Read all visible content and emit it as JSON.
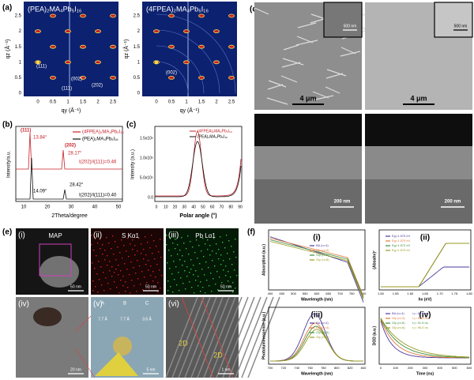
{
  "panel_a": {
    "label": "(a)",
    "titles": [
      "(PEA)₂MA₄Pb₅I₁₆",
      "(4FPEA)₂MA₄Pb₅I₁₆"
    ],
    "y_label": "qz (Å⁻¹)",
    "x_label": "qy (Å⁻¹)",
    "yticks": [
      "0",
      "0.5",
      "1",
      "1.5",
      "2",
      "2.5"
    ],
    "xticks": [
      "0",
      "0.5",
      "1",
      "1.5",
      "2",
      "2.5"
    ],
    "annotations_left": [
      "(111)",
      "(002)",
      "(111)",
      "(202)"
    ],
    "annotations_right": [
      "(002)"
    ]
  },
  "panel_b": {
    "label": "(b)",
    "legend": [
      "(4FPEA)₂MA₄Pb₅I₁₆",
      "(PEA)₂MA₄Pb₅I₁₆"
    ],
    "annotations": [
      "(111)",
      "13.84°",
      "(202)",
      "28.17°",
      "I(202)/I(111)=0.46",
      "14.09°",
      "28.42°",
      "I(202)/I(111)=0.40"
    ],
    "xticks": [
      "10",
      "20",
      "30",
      "40",
      "50"
    ],
    "x_label": "2Theta/degree",
    "y_label": "Intensity/a.u."
  },
  "panel_c": {
    "label": "(c)",
    "legend": [
      "(4FPEA)₂MA₄Pb₅I₁₆",
      "(PEA)₂MA₄Pb₅I₁₆"
    ],
    "yticks": [
      "0.0",
      "5.0x10⁵",
      "1.0x10⁶",
      "1.5x10⁶"
    ],
    "xticks": [
      "0",
      "10",
      "20",
      "30",
      "40",
      "50",
      "60",
      "70",
      "80",
      "90"
    ],
    "x_label": "Polar angle (°)",
    "y_label": "Intensity (a.u.)"
  },
  "panel_d": {
    "label": "(d)",
    "scale_top": [
      "4 μm",
      "4 μm"
    ],
    "inset_scale": [
      "500 nm",
      "500 nm"
    ],
    "scale_bottom": [
      "200 nm",
      "200 nm"
    ]
  },
  "panel_e": {
    "label": "(e)",
    "subpanels": [
      {
        "label": "(i)",
        "title": "MAP",
        "scale": "50 nm"
      },
      {
        "label": "(ii)",
        "title": "S Kα1",
        "scale": "50 nm"
      },
      {
        "label": "(iii)",
        "title": "Pb Lα1",
        "scale": "50 nm"
      },
      {
        "label": "(iv)",
        "scale": "20 nm"
      },
      {
        "label": "(v)",
        "scale": "5 nm"
      },
      {
        "label": "(vi)",
        "scale": "1 nm"
      }
    ],
    "lattice": [
      "A",
      "B",
      "C"
    ],
    "spacings": [
      "7.7 Å",
      "7.7 Å",
      "3.6 Å"
    ],
    "phase": [
      "2D",
      "2D"
    ]
  },
  "panel_f": {
    "label": "(f)",
    "legend": [
      "BA (n=4)",
      "Gly (n=4)",
      "Gly (n=6)",
      "Gly (n=8)"
    ],
    "colors": [
      "#4b3a9c",
      "#e07a3a",
      "#3c8c3c",
      "#9a9a22"
    ],
    "i": {
      "label": "(i)",
      "x_label": "Wavelength (nm)",
      "y_label": "Absorption (a.u.)",
      "xticks": [
        "400",
        "450",
        "500",
        "550",
        "600",
        "650",
        "700",
        "750",
        "800"
      ]
    },
    "ii": {
      "label": "(ii)",
      "x_label": "hν (eV)",
      "y_label": "(Absαhν)²",
      "xticks": [
        "1.50",
        "1.55",
        "1.60",
        "1.65",
        "1.70",
        "1.75",
        "1.80"
      ],
      "gaps": [
        "Eg=1.579 eV",
        "Eg=1.575 eV",
        "Eg=1.572 eV",
        "Eg=1.570 eV"
      ]
    },
    "iii": {
      "label": "(iii)",
      "x_label": "Wavelength (nm)",
      "y_label": "Photoluminescence (a.u.)",
      "xticks": [
        "700",
        "720",
        "740",
        "760",
        "780",
        "800",
        "820",
        "840"
      ]
    },
    "iv": {
      "label": "(iv)",
      "x_label": "Time (ns)",
      "y_label": "DOD (a.u.)",
      "xticks": [
        "0",
        "100",
        "200",
        "300",
        "400",
        "500",
        "600"
      ],
      "lifetimes": [
        "τ₂= 66.1 ns",
        "τ₂= 85.9 ns",
        "τ₂= 91.5 ns",
        "τ₂= 96.3 ns"
      ]
    }
  }
}
